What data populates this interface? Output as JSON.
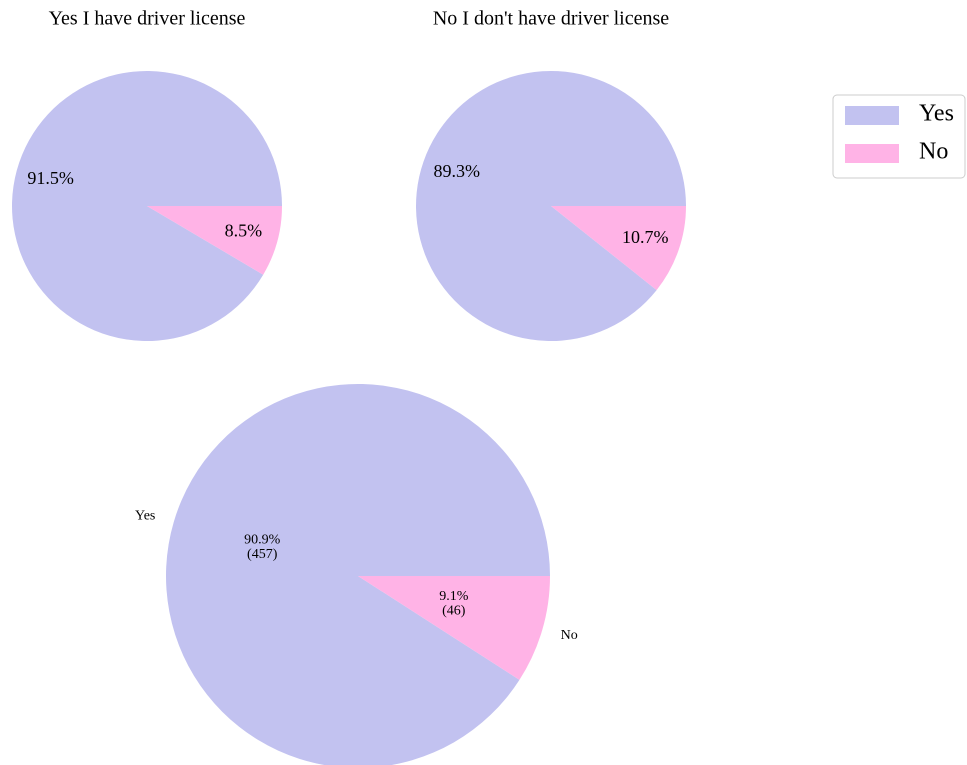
{
  "chart_data": [
    {
      "type": "pie",
      "title": "Yes I have driver license",
      "categories": [
        "Yes",
        "No"
      ],
      "values": [
        91.5,
        8.5
      ],
      "value_labels": [
        "91.5%",
        "8.5%"
      ],
      "colors": [
        "#c2c2f0",
        "#ffb3e6"
      ],
      "legend": "upper right"
    },
    {
      "type": "pie",
      "title": "No I don't have driver license",
      "categories": [
        "Yes",
        "No"
      ],
      "values": [
        89.3,
        10.7
      ],
      "value_labels": [
        "89.3%",
        "10.7%"
      ],
      "colors": [
        "#c2c2f0",
        "#ffb3e6"
      ]
    },
    {
      "type": "pie",
      "categories": [
        "Yes",
        "No"
      ],
      "values": [
        90.9,
        9.1
      ],
      "value_labels": [
        "90.9%\n(457)",
        "9.1%\n(46)"
      ],
      "colors": [
        "#c2c2f0",
        "#ffb3e6"
      ],
      "category_labels": true
    }
  ]
}
